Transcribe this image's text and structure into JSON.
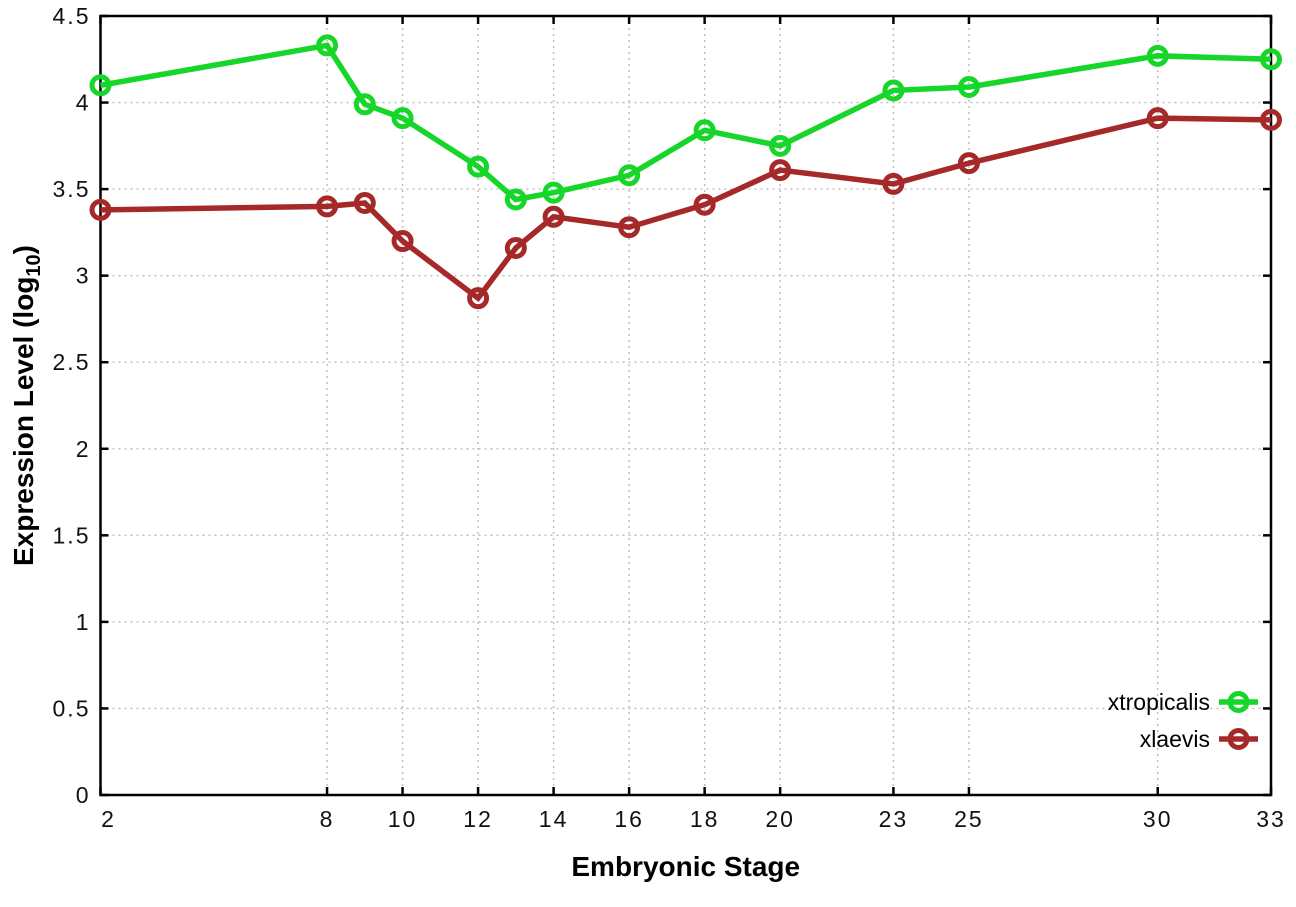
{
  "chart_data": {
    "type": "line",
    "title": "",
    "xlabel": "Embryonic Stage",
    "ylabel": "Expression Level (log10)",
    "ylabel_main": "Expression Level (log",
    "ylabel_sub": "10",
    "ylabel_suffix": ")",
    "x": [
      2,
      8,
      9,
      10,
      12,
      13,
      14,
      16,
      18,
      20,
      23,
      25,
      30,
      33
    ],
    "series": [
      {
        "name": "xtropicalis",
        "color": "#17d62a",
        "marker": "open-circle",
        "values": [
          4.1,
          4.33,
          3.99,
          3.91,
          3.63,
          3.44,
          3.48,
          3.58,
          3.84,
          3.75,
          4.07,
          4.09,
          4.27,
          4.25
        ]
      },
      {
        "name": "xlaevis",
        "color": "#a62929",
        "marker": "open-circle",
        "values": [
          3.38,
          3.4,
          3.42,
          3.2,
          2.87,
          3.16,
          3.34,
          3.28,
          3.41,
          3.61,
          3.53,
          3.65,
          3.91,
          3.9
        ]
      }
    ],
    "x_ticks": [
      2,
      8,
      10,
      12,
      14,
      16,
      18,
      20,
      23,
      25,
      30,
      33
    ],
    "x_tick_labels": [
      "2",
      "8",
      "10",
      "12",
      "14",
      "16",
      "18",
      "20",
      "23",
      "25",
      "30",
      "33"
    ],
    "y_ticks": [
      0,
      0.5,
      1,
      1.5,
      2,
      2.5,
      3,
      3.5,
      4,
      4.5
    ],
    "y_tick_labels": [
      "0",
      "0.5",
      "1",
      "1.5",
      "2",
      "2.5",
      "3",
      "3.5",
      "4",
      "4.5"
    ],
    "xlim": [
      2,
      33
    ],
    "ylim": [
      0,
      4.5
    ],
    "grid": true,
    "legend_position": "bottom-right",
    "colors": {
      "axis": "#000000",
      "grid": "#bbbbbb",
      "background": "#ffffff"
    }
  }
}
